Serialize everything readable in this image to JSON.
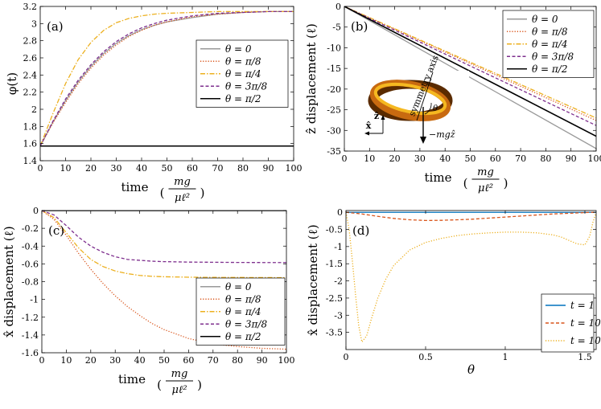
{
  "chart_data": [
    {
      "id": "a",
      "type": "line",
      "panel_label": "(a)",
      "ylabel": "φ(t)",
      "xlabel": "time",
      "xunit_num": "mg",
      "xunit_den": "μℓ²",
      "xlim": [
        0,
        100
      ],
      "ylim": [
        1.4,
        3.2
      ],
      "xticks": [
        0,
        10,
        20,
        30,
        40,
        50,
        60,
        70,
        80,
        90,
        100
      ],
      "yticks": [
        1.4,
        1.6,
        1.8,
        2.0,
        2.2,
        2.4,
        2.6,
        2.8,
        3.0,
        3.2
      ],
      "ytick_labels": [
        "1.4",
        "1.6",
        "1.8",
        "2",
        "2.2",
        "2.4",
        "2.6",
        "2.8",
        "3",
        "3.2"
      ],
      "legend": "center-right",
      "series": [
        {
          "name": "θ = 0",
          "color": "#999999",
          "dash": "solid",
          "x": [
            0,
            5,
            10,
            15,
            20,
            25,
            30,
            35,
            40,
            45,
            50,
            60,
            70,
            80,
            90,
            100
          ],
          "y": [
            1.571,
            1.85,
            2.1,
            2.32,
            2.5,
            2.65,
            2.77,
            2.86,
            2.93,
            2.98,
            3.02,
            3.07,
            3.11,
            3.13,
            3.14,
            3.14
          ]
        },
        {
          "name": "θ = π/8",
          "color": "#d9541a",
          "dash": "dot",
          "x": [
            0,
            5,
            10,
            15,
            20,
            25,
            30,
            35,
            40,
            45,
            50,
            60,
            70,
            80,
            90,
            100
          ],
          "y": [
            1.571,
            1.84,
            2.08,
            2.3,
            2.48,
            2.63,
            2.75,
            2.85,
            2.92,
            2.98,
            3.02,
            3.08,
            3.11,
            3.13,
            3.14,
            3.14
          ]
        },
        {
          "name": "θ = π/4",
          "color": "#ecb01f",
          "dash": "dashdot",
          "x": [
            0,
            5,
            10,
            15,
            20,
            25,
            30,
            35,
            40,
            45,
            50,
            60,
            70,
            80,
            90,
            100
          ],
          "y": [
            1.571,
            1.95,
            2.3,
            2.58,
            2.78,
            2.92,
            3.01,
            3.06,
            3.09,
            3.11,
            3.12,
            3.13,
            3.14,
            3.14,
            3.14,
            3.14
          ]
        },
        {
          "name": "θ = 3π/8",
          "color": "#7e2f8e",
          "dash": "dash",
          "x": [
            0,
            5,
            10,
            15,
            20,
            25,
            30,
            35,
            40,
            45,
            50,
            60,
            70,
            80,
            90,
            100
          ],
          "y": [
            1.571,
            1.86,
            2.12,
            2.34,
            2.52,
            2.67,
            2.79,
            2.88,
            2.95,
            3.0,
            3.04,
            3.09,
            3.12,
            3.13,
            3.14,
            3.14
          ]
        },
        {
          "name": "θ = π/2",
          "color": "#000000",
          "dash": "solid",
          "x": [
            0,
            100
          ],
          "y": [
            1.571,
            1.571
          ]
        }
      ]
    },
    {
      "id": "b",
      "type": "line",
      "panel_label": "(b)",
      "ylabel": "ẑ displacement (ℓ)",
      "xlabel": "time",
      "xunit_num": "mg",
      "xunit_den": "μℓ²",
      "xlim": [
        0,
        100
      ],
      "ylim": [
        -35,
        0
      ],
      "xticks": [
        0,
        10,
        20,
        30,
        40,
        50,
        60,
        70,
        80,
        90,
        100
      ],
      "yticks": [
        0,
        -5,
        -10,
        -15,
        -20,
        -25,
        -30,
        -35
      ],
      "ytick_labels": [
        "0",
        "-5",
        "-10",
        "-15",
        "-20",
        "-25",
        "-30",
        "-35"
      ],
      "legend": "top-right",
      "inset": {
        "labels": [
          "symmetry axis",
          "θ",
          "−mgẑ",
          "ẑ",
          "x̂"
        ],
        "colors": {
          "dark": "#5a2b00",
          "mid": "#c86a10",
          "light": "#f5b820"
        }
      },
      "series": [
        {
          "name": "θ = 0",
          "color": "#999999",
          "dash": "solid",
          "x": [
            0,
            100
          ],
          "y": [
            0,
            -34.4
          ]
        },
        {
          "name": "θ = π/8",
          "color": "#d9541a",
          "dash": "dot",
          "x": [
            0,
            100
          ],
          "y": [
            0,
            -27.6
          ]
        },
        {
          "name": "θ = π/4",
          "color": "#ecb01f",
          "dash": "dashdot",
          "x": [
            0,
            100
          ],
          "y": [
            0,
            -27.0
          ]
        },
        {
          "name": "θ = 3π/8",
          "color": "#7e2f8e",
          "dash": "dash",
          "x": [
            0,
            100
          ],
          "y": [
            0,
            -28.8
          ]
        },
        {
          "name": "θ = π/2",
          "color": "#000000",
          "dash": "solid",
          "x": [
            0,
            100
          ],
          "y": [
            0,
            -31.4
          ]
        }
      ]
    },
    {
      "id": "c",
      "type": "line",
      "panel_label": "(c)",
      "ylabel": "x̂ displacement (ℓ)",
      "xlabel": "time",
      "xunit_num": "mg",
      "xunit_den": "μℓ²",
      "xlim": [
        0,
        100
      ],
      "ylim": [
        -1.6,
        0
      ],
      "xticks": [
        0,
        10,
        20,
        30,
        40,
        50,
        60,
        70,
        80,
        90,
        100
      ],
      "yticks": [
        0,
        -0.2,
        -0.4,
        -0.6,
        -0.8,
        -1.0,
        -1.2,
        -1.4,
        -1.6
      ],
      "ytick_labels": [
        "0",
        "-0.2",
        "-0.4",
        "-0.6",
        "-0.8",
        "-1",
        "-1.2",
        "-1.4",
        "-1.6"
      ],
      "legend": "center-right",
      "series": [
        {
          "name": "θ = 0",
          "color": "#999999",
          "dash": "solid",
          "x": [
            0,
            100
          ],
          "y": [
            0,
            0
          ]
        },
        {
          "name": "θ = π/8",
          "color": "#d9541a",
          "dash": "dot",
          "x": [
            0,
            5,
            10,
            15,
            20,
            25,
            30,
            35,
            40,
            45,
            50,
            60,
            70,
            80,
            90,
            100
          ],
          "y": [
            0,
            -0.1,
            -0.28,
            -0.48,
            -0.66,
            -0.82,
            -0.96,
            -1.08,
            -1.18,
            -1.27,
            -1.34,
            -1.44,
            -1.5,
            -1.53,
            -1.55,
            -1.56
          ]
        },
        {
          "name": "θ = π/4",
          "color": "#ecb01f",
          "dash": "dashdot",
          "x": [
            0,
            5,
            10,
            15,
            20,
            25,
            30,
            35,
            40,
            45,
            50,
            60,
            70,
            80,
            90,
            100
          ],
          "y": [
            0,
            -0.08,
            -0.25,
            -0.42,
            -0.55,
            -0.63,
            -0.68,
            -0.71,
            -0.73,
            -0.74,
            -0.745,
            -0.75,
            -0.752,
            -0.753,
            -0.754,
            -0.755
          ]
        },
        {
          "name": "θ = 3π/8",
          "color": "#7e2f8e",
          "dash": "dash",
          "x": [
            0,
            5,
            10,
            15,
            20,
            25,
            30,
            35,
            40,
            45,
            50,
            60,
            70,
            80,
            90,
            100
          ],
          "y": [
            0,
            -0.05,
            -0.17,
            -0.3,
            -0.4,
            -0.47,
            -0.52,
            -0.55,
            -0.56,
            -0.57,
            -0.575,
            -0.58,
            -0.582,
            -0.584,
            -0.585,
            -0.585
          ]
        },
        {
          "name": "θ = π/2",
          "color": "#000000",
          "dash": "solid",
          "x": [
            0,
            100
          ],
          "y": [
            0,
            0
          ]
        }
      ]
    },
    {
      "id": "d",
      "type": "line",
      "panel_label": "(d)",
      "ylabel": "x̂ displacement (ℓ)",
      "xlabel": "θ",
      "xlim": [
        0,
        1.5708
      ],
      "ylim": [
        -4.0,
        0.05
      ],
      "xticks": [
        0,
        0.5,
        1.0,
        1.5
      ],
      "xtick_labels": [
        "0",
        "0.5",
        "1",
        "1.5"
      ],
      "yticks": [
        0,
        -0.5,
        -1.0,
        -1.5,
        -2.0,
        -2.5,
        -3.0,
        -3.5
      ],
      "ytick_labels": [
        "0",
        "-0.5",
        "-1",
        "-1.5",
        "-2",
        "-2.5",
        "-3",
        "-3.5"
      ],
      "legend": "bottom-right",
      "series": [
        {
          "name": "t = 1",
          "color": "#0072bd",
          "dash": "solid",
          "x": [
            0,
            1.5708
          ],
          "y": [
            -0.003,
            -0.003
          ]
        },
        {
          "name": "t = 10",
          "color": "#d9541a",
          "dash": "dash",
          "x": [
            0,
            0.1,
            0.2,
            0.3,
            0.4,
            0.5,
            0.6,
            0.7,
            0.8,
            0.9,
            1.0,
            1.1,
            1.2,
            1.3,
            1.4,
            1.5,
            1.5708
          ],
          "y": [
            0,
            -0.05,
            -0.12,
            -0.18,
            -0.22,
            -0.24,
            -0.235,
            -0.22,
            -0.2,
            -0.17,
            -0.14,
            -0.11,
            -0.08,
            -0.05,
            -0.03,
            -0.01,
            0
          ]
        },
        {
          "name": "t = 100",
          "color": "#ecb01f",
          "dash": "dot",
          "x": [
            0,
            0.02,
            0.04,
            0.06,
            0.08,
            0.1,
            0.13,
            0.16,
            0.2,
            0.25,
            0.3,
            0.4,
            0.5,
            0.6,
            0.7,
            0.8,
            0.9,
            1.0,
            1.1,
            1.2,
            1.3,
            1.35,
            1.4,
            1.45,
            1.5,
            1.53,
            1.55,
            1.5708
          ],
          "y": [
            0,
            -0.5,
            -1.4,
            -2.4,
            -3.3,
            -3.78,
            -3.6,
            -3.1,
            -2.5,
            -1.95,
            -1.55,
            -1.1,
            -0.88,
            -0.76,
            -0.68,
            -0.63,
            -0.6,
            -0.58,
            -0.58,
            -0.6,
            -0.66,
            -0.72,
            -0.82,
            -0.92,
            -0.95,
            -0.7,
            -0.3,
            0
          ]
        }
      ]
    }
  ]
}
